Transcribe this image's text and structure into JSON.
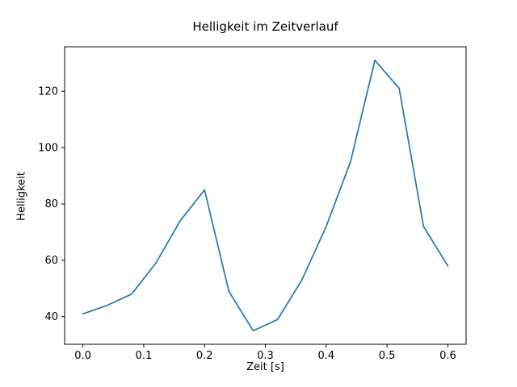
{
  "chart_data": {
    "type": "line",
    "title": "Helligkeit im Zeitverlauf",
    "xlabel": "Zeit [s]",
    "ylabel": "Helligkeit",
    "x": [
      0.0,
      0.04,
      0.08,
      0.12,
      0.16,
      0.2,
      0.24,
      0.28,
      0.32,
      0.36,
      0.4,
      0.44,
      0.48,
      0.52,
      0.56,
      0.6
    ],
    "y": [
      41,
      44,
      48,
      59,
      74,
      85,
      49,
      35,
      39,
      53,
      72,
      95,
      131,
      121,
      72,
      58
    ],
    "xticks": [
      0.0,
      0.1,
      0.2,
      0.3,
      0.4,
      0.5,
      0.6
    ],
    "xtick_labels": [
      "0.0",
      "0.1",
      "0.2",
      "0.3",
      "0.4",
      "0.5",
      "0.6"
    ],
    "yticks": [
      40,
      60,
      80,
      100,
      120
    ],
    "ytick_labels": [
      "40",
      "60",
      "80",
      "100",
      "120"
    ],
    "xlim": [
      -0.03,
      0.63
    ],
    "ylim": [
      30.2,
      135.8
    ],
    "line_color": "#1f77b4",
    "axes_color": "#000000",
    "background_color": "#ffffff",
    "grid": false,
    "legend_position": "none"
  }
}
